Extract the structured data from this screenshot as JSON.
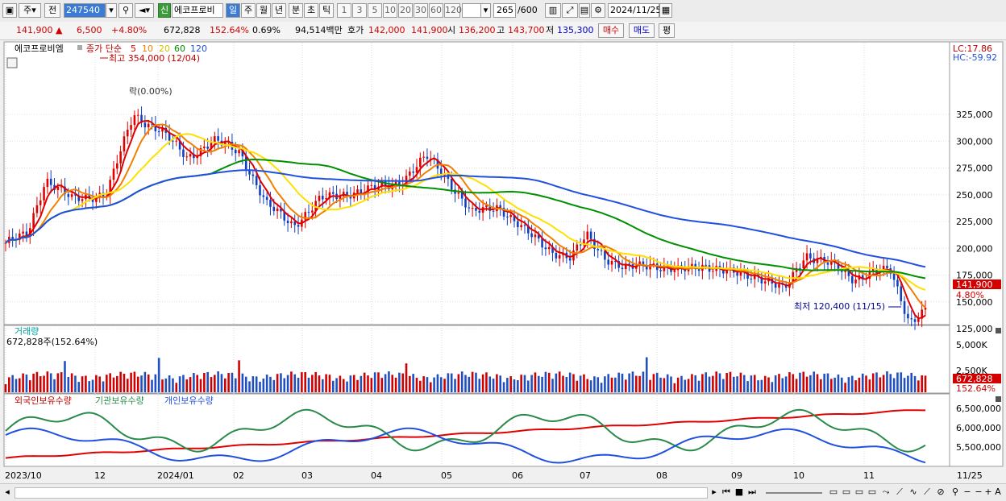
{
  "toolbar": {
    "view_mode": "주",
    "prev_label": "전",
    "stock_code": "247540",
    "credit_badge": "신",
    "stock_name": "에코프로비",
    "periods": [
      "일",
      "주",
      "월",
      "년",
      "분",
      "초",
      "틱"
    ],
    "active_period": "일",
    "intervals": [
      "1",
      "3",
      "5",
      "10",
      "20",
      "30",
      "60",
      "120"
    ],
    "count": "265",
    "count_max": "/600",
    "date": "2024/11/25"
  },
  "quote": {
    "price": "141,900 ▲",
    "change": "6,500",
    "change_pct": "+4.80%",
    "volume": "672,828",
    "volume_ratio": "152.64%",
    "turnover": "0.69%",
    "amount": "94,514백만",
    "ask_label": "호가",
    "ask": "142,000",
    "bid": "141,900",
    "open_label": "시",
    "open": "136,200",
    "high_label": "고",
    "high": "143,700",
    "low_label": "저",
    "low": "135,300",
    "buy_label": "매수",
    "sell_label": "매도",
    "eval_label": "평"
  },
  "main_panel": {
    "stock_name": "에코프로비엠",
    "ma_prefix": "종가 단순",
    "ma_periods": [
      "5",
      "10",
      "20",
      "60",
      "120"
    ],
    "ma_colors": [
      "#e00000",
      "#f08000",
      "#ffe000",
      "#009000",
      "#2050e0"
    ],
    "high_annotation": "최고 354,000 (12/04)",
    "low_annotation": "최저 120,400 (11/15)",
    "lock_note": "락(0.00%)",
    "lc": "LC:17.86",
    "hc": "HC:-59.92",
    "y_labels": [
      "325,000",
      "300,000",
      "275,000",
      "250,000",
      "225,000",
      "200,000",
      "175,000",
      "150,000",
      "125,000"
    ],
    "price_tag": "141,900",
    "pct_tag": "4.80%"
  },
  "volume_panel": {
    "title": "거래량",
    "value": "672,828주(152.64%)",
    "y_labels": [
      "5,000K",
      "2,500K"
    ],
    "tag": "672,828",
    "tag_pct": "152.64%"
  },
  "holding_panel": {
    "series": [
      "외국인보유수량",
      "기관보유수량",
      "개인보유수량"
    ],
    "series_colors": [
      "#e00000",
      "#2a8a4a",
      "#2050e0"
    ],
    "y_labels": [
      "6,500,000",
      "6,000,000",
      "5,500,000"
    ]
  },
  "x_axis": {
    "labels": [
      "2023/10",
      "12",
      "2024/01",
      "02",
      "03",
      "04",
      "05",
      "06",
      "07",
      "08",
      "09",
      "10",
      "11",
      "11/25"
    ]
  }
}
